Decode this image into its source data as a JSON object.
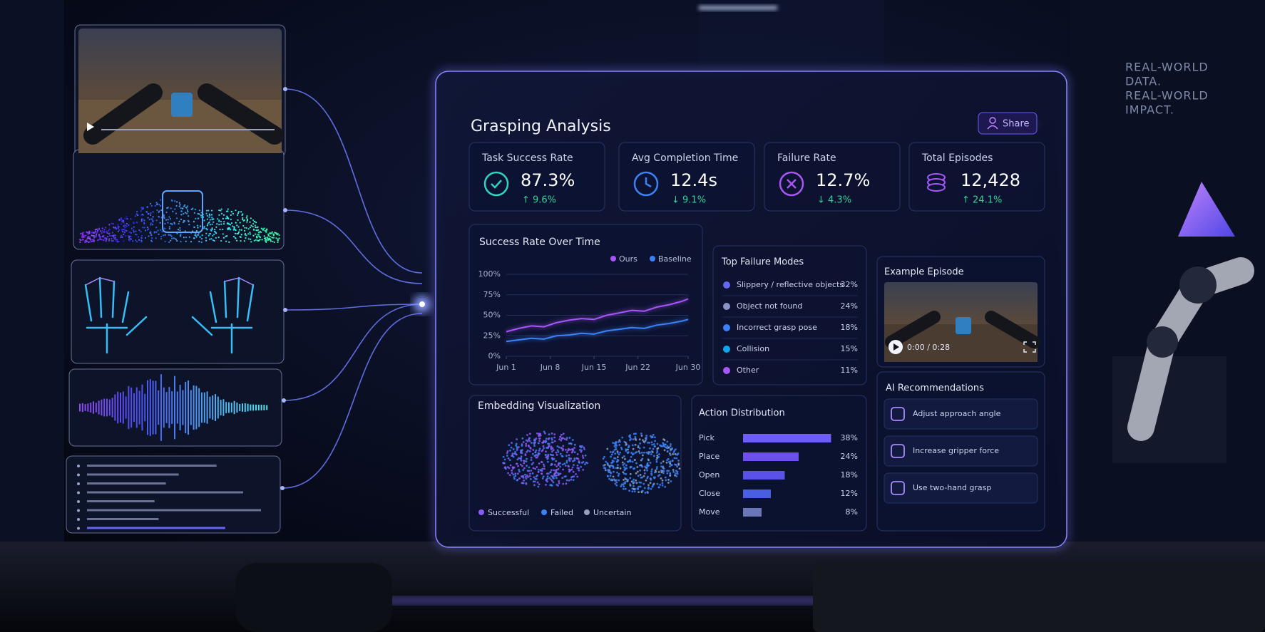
{
  "tagline": [
    "REAL-WORLD",
    "DATA.",
    "REAL-WORLD",
    "IMPACT."
  ],
  "dashboard": {
    "title": "Grasping Analysis",
    "share": "Share",
    "kpis": [
      {
        "label": "Task Success Rate",
        "value": "87.3%",
        "change": "↑ 9.6%",
        "icon_color": "#2dd4bf"
      },
      {
        "label": "Avg Completion Time",
        "value": "12.4s",
        "change": "↓ 9.1%",
        "icon_color": "#3b82f6"
      },
      {
        "label": "Failure Rate",
        "value": "12.7%",
        "change": "↓ 4.3%",
        "icon_color": "#a855f7"
      },
      {
        "label": "Total Episodes",
        "value": "12,428",
        "change": "↑ 24.1%",
        "icon_color": "#a855f7"
      }
    ],
    "success_chart": {
      "type": "line",
      "title": "Success Rate Over Time",
      "x": [
        1,
        3,
        5,
        7,
        9,
        11,
        13,
        15,
        17,
        19,
        21,
        23,
        25,
        27,
        29,
        30
      ],
      "xlim": [
        1,
        30
      ],
      "xticks": [
        {
          "value": 1,
          "label": "Jun 1"
        },
        {
          "value": 8,
          "label": "Jun 8"
        },
        {
          "value": 15,
          "label": "Jun 15"
        },
        {
          "value": 22,
          "label": "Jun 22"
        },
        {
          "value": 30,
          "label": "Jun 30"
        }
      ],
      "ylim": [
        0,
        100
      ],
      "yticks": [
        {
          "value": 0,
          "label": "0%"
        },
        {
          "value": 25,
          "label": "25%"
        },
        {
          "value": 50,
          "label": "50%"
        },
        {
          "value": 75,
          "label": "75%"
        },
        {
          "value": 100,
          "label": "100%"
        }
      ],
      "grid": true,
      "series": [
        {
          "name": "Ours",
          "color": "#a855f7",
          "values": [
            30,
            34,
            37,
            36,
            41,
            44,
            46,
            45,
            50,
            53,
            56,
            55,
            60,
            63,
            67,
            70
          ]
        },
        {
          "name": "Baseline",
          "color": "#3b82f6",
          "values": [
            18,
            20,
            22,
            21,
            25,
            26,
            28,
            27,
            31,
            33,
            35,
            34,
            38,
            40,
            43,
            45
          ]
        }
      ]
    },
    "failure_modes": {
      "title": "Top Failure Modes",
      "items": [
        {
          "label": "Slippery / reflective objects",
          "value": "32%",
          "color": "#6366f1"
        },
        {
          "label": "Object not found",
          "value": "24%",
          "color": "#8b93c9"
        },
        {
          "label": "Incorrect grasp pose",
          "value": "18%",
          "color": "#3b82f6"
        },
        {
          "label": "Collision",
          "value": "15%",
          "color": "#0ea5e9"
        },
        {
          "label": "Other",
          "value": "11%",
          "color": "#a855f7"
        }
      ]
    },
    "example_episode": {
      "title": "Example Episode",
      "time": "0:00 / 0:28"
    },
    "embedding": {
      "title": "Embedding Visualization",
      "legend": [
        {
          "name": "Successful",
          "color": "#8b5cf6"
        },
        {
          "name": "Failed",
          "color": "#3b82f6"
        },
        {
          "name": "Uncertain",
          "color": "#94a3b8"
        }
      ]
    },
    "action_distribution": {
      "type": "bar",
      "title": "Action Distribution",
      "categories": [
        "Pick",
        "Place",
        "Open",
        "Close",
        "Move"
      ],
      "values": [
        38,
        24,
        18,
        12,
        8
      ],
      "value_labels": [
        "38%",
        "24%",
        "18%",
        "12%",
        "8%"
      ],
      "colors": [
        "#6d5cf6",
        "#6d4ff0",
        "#5a52e8",
        "#4a5ee0",
        "#6a76b8"
      ],
      "xlim": [
        0,
        40
      ]
    },
    "recommendations": {
      "title": "AI Recommendations",
      "items": [
        "Adjust approach angle",
        "Increase gripper force",
        "Use two-hand grasp"
      ]
    }
  }
}
